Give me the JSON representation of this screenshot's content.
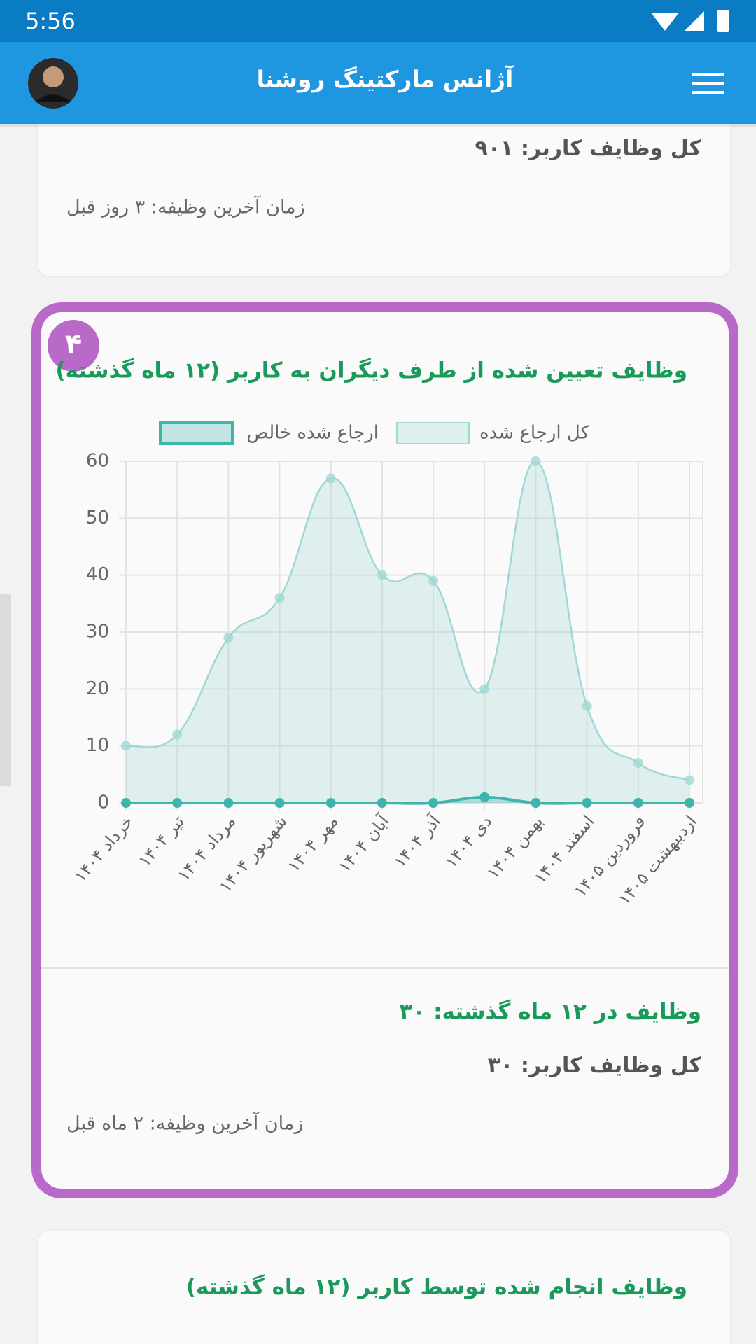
{
  "status_bar": {
    "time": "5:56"
  },
  "app_bar": {
    "title": "آژانس مارکتینگ روشنا"
  },
  "cards": [
    {
      "total": "کل وظایف کاربر: ۹۰۱",
      "last_task": "زمان آخرین وظیفه: ۳ روز قبل"
    },
    {
      "badge": "۴",
      "title": "وظایف تعیین شده از طرف دیگران به کاربر (۱۲ ماه گذشته)",
      "period_total": "وظایف در ۱۲ ماه گذشته: ۳۰",
      "total": "کل وظایف کاربر: ۳۰",
      "last_task": "زمان آخرین وظیفه: ۲ ماه قبل"
    },
    {
      "title": "وظایف انجام شده توسط کاربر (۱۲ ماه گذشته)"
    }
  ],
  "chart_data": {
    "type": "line",
    "categories": [
      "خرداد ۱۴۰۴",
      "تیر ۱۴۰۴",
      "مرداد ۱۴۰۴",
      "شهریور ۱۴۰۴",
      "مهر ۱۴۰۴",
      "آبان ۱۴۰۴",
      "آذر ۱۴۰۴",
      "دی ۱۴۰۴",
      "بهمن ۱۴۰۴",
      "اسفند ۱۴۰۴",
      "فروردین ۱۴۰۵",
      "اردیبهشت ۱۴۰۵"
    ],
    "series": [
      {
        "name": "کل ارجاع شده",
        "color": "#9fd8d5",
        "values": [
          10,
          12,
          29,
          36,
          57,
          40,
          39,
          20,
          60,
          17,
          7,
          4
        ]
      },
      {
        "name": "ارجاع شده خالص",
        "color": "#3db5ad",
        "values": [
          0,
          0,
          0,
          0,
          0,
          0,
          0,
          1,
          0,
          0,
          0,
          0
        ]
      }
    ],
    "ylim": [
      0,
      60
    ],
    "yticks": [
      0,
      10,
      20,
      30,
      40,
      50,
      60
    ],
    "grid": true
  }
}
